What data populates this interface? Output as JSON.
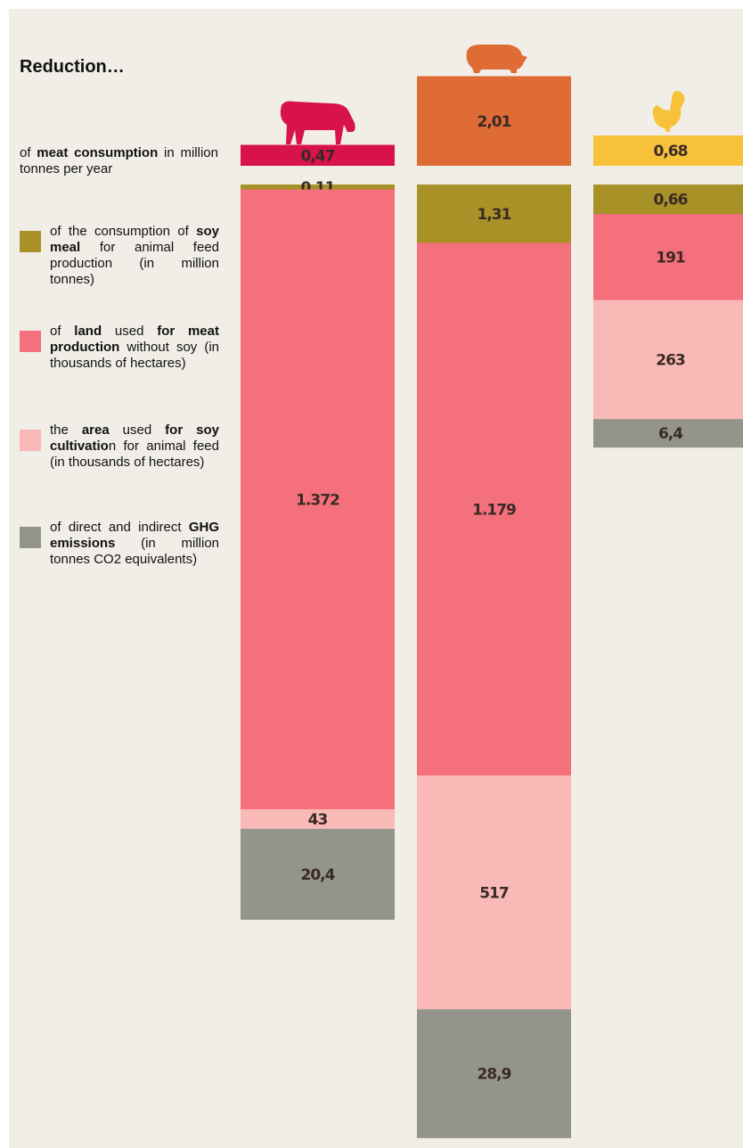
{
  "title": "Reduction…",
  "chart_data": {
    "type": "stacked-columns",
    "series": [
      {
        "name": [
          {
            "text": "of ",
            "bold": false
          },
          {
            "text": "meat consumption",
            "bold": true
          },
          {
            "text": " in million tonnes per year",
            "bold": false
          }
        ],
        "colors": [
          "#d8124a",
          "#e06c35",
          "#f8c13a"
        ],
        "values": [
          0.47,
          2.01,
          0.68
        ],
        "value_labels": [
          "0,47",
          "2,01",
          "0,68"
        ]
      },
      {
        "name": [
          {
            "text": "of the consumption of ",
            "bold": false
          },
          {
            "text": "soy meal",
            "bold": true
          },
          {
            "text": " for animal feed production (in million tonnes)",
            "bold": false
          }
        ],
        "color": "#a89127",
        "values": [
          0.11,
          1.31,
          0.66
        ],
        "value_labels": [
          "0,11",
          "1,31",
          "0,66"
        ]
      },
      {
        "name": [
          {
            "text": "of ",
            "bold": false
          },
          {
            "text": "land",
            "bold": true
          },
          {
            "text": " used ",
            "bold": false
          },
          {
            "text": "for meat production",
            "bold": true
          },
          {
            "text": " without soy (in thousands of hectares)",
            "bold": false
          }
        ],
        "color": "#f4707c",
        "values": [
          1372,
          1179,
          191
        ],
        "value_labels": [
          "1.372",
          "1.179",
          "191"
        ]
      },
      {
        "name": [
          {
            "text": "the ",
            "bold": false
          },
          {
            "text": "area",
            "bold": true
          },
          {
            "text": " used ",
            "bold": false
          },
          {
            "text": "for soy cultivatio",
            "bold": true
          },
          {
            "text": "n for animal feed (in thousands of hectares)",
            "bold": false
          }
        ],
        "color": "#f9b9b6",
        "values": [
          43,
          517,
          263
        ],
        "value_labels": [
          "43",
          "517",
          "263"
        ]
      },
      {
        "name": [
          {
            "text": "of direct and indirect ",
            "bold": false
          },
          {
            "text": "GHG emissions",
            "bold": true
          },
          {
            "text": " (in million tonnes CO2 equivalents)",
            "bold": false
          }
        ],
        "color": "#93948c",
        "values": [
          20.4,
          28.9,
          6.4
        ],
        "value_labels": [
          "20,4",
          "28,9",
          "6,4"
        ]
      }
    ]
  }
}
